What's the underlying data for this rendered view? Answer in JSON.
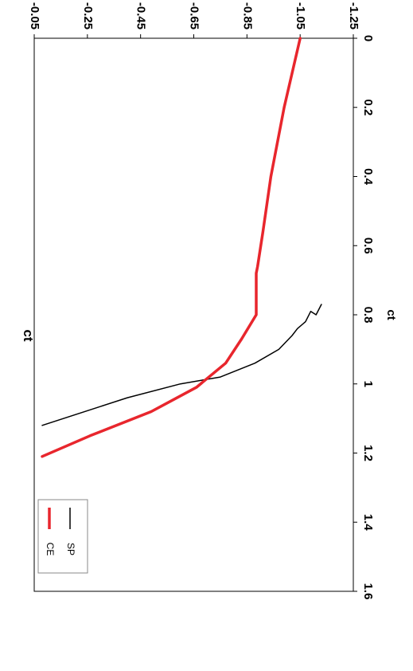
{
  "chart_data": {
    "type": "line",
    "title": "ct",
    "xlabel": "",
    "ylabel": "ct",
    "xlim": [
      -1.25,
      -0.05
    ],
    "ylim": [
      0,
      1.6
    ],
    "x_ticks": [
      "-1.25",
      "-1.05",
      "-0.85",
      "-0.65",
      "-0.45",
      "-0.25",
      "-0.05"
    ],
    "y_ticks": [
      "0",
      "0.2",
      "0.4",
      "0.6",
      "0.8",
      "1",
      "1.2",
      "1.4",
      "1.6"
    ],
    "grid": false,
    "legend_position": "top-left",
    "orientation_note": "figure rendered rotated 180 degrees",
    "series": [
      {
        "name": "SP",
        "color": "#000000",
        "x": [
          -1.13,
          -1.11,
          -1.09,
          -1.07,
          -1.04,
          -1.02,
          -0.97,
          -0.88,
          -0.75,
          -0.6,
          -0.4,
          -0.2,
          -0.08
        ],
        "y": [
          0.77,
          0.8,
          0.79,
          0.82,
          0.84,
          0.86,
          0.9,
          0.94,
          0.98,
          1.0,
          1.04,
          1.09,
          1.12
        ]
      },
      {
        "name": "CE",
        "color": "#e8262d",
        "x": [
          -1.05,
          -0.99,
          -0.94,
          -0.91,
          -0.89,
          -0.885,
          -0.885,
          -0.83,
          -0.77,
          -0.66,
          -0.49,
          -0.26,
          -0.08
        ],
        "y": [
          0.0,
          0.2,
          0.4,
          0.56,
          0.66,
          0.68,
          0.8,
          0.87,
          0.94,
          1.01,
          1.08,
          1.15,
          1.21
        ]
      }
    ]
  }
}
